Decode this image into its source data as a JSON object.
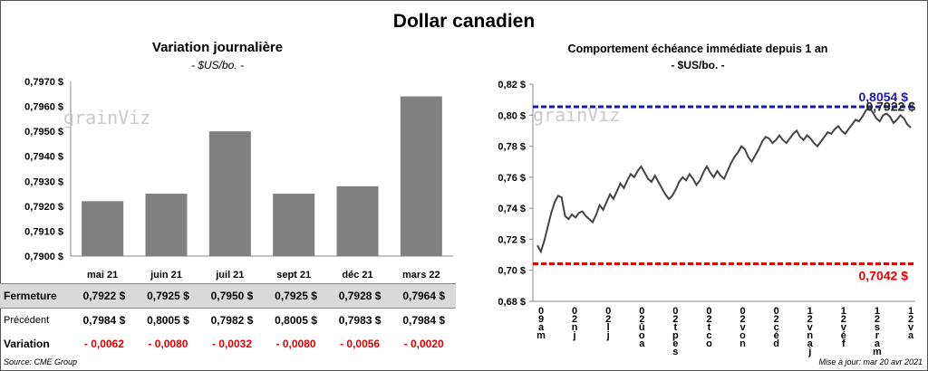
{
  "title": "Dollar canadien",
  "source": "Source: CME Group",
  "updated": "Mise à jour: mar 20 avr 2021",
  "watermark": "grainViz",
  "colors": {
    "bar": "#808080",
    "line": "#444444",
    "high": "#1a1aaa",
    "low": "#e00000"
  },
  "summary": {
    "rows": [
      {
        "label": "Fermeture",
        "values": [
          "0,7922  $",
          "0,7925  $",
          "0,7950  $",
          "0,7925  $",
          "0,7928  $",
          "0,7964  $"
        ]
      },
      {
        "label": "Précédent",
        "values": [
          "0,7984  $",
          "0,8005  $",
          "0,7982  $",
          "0,8005  $",
          "0,7983  $",
          "0,7984  $"
        ]
      },
      {
        "label": "Variation",
        "values": [
          "- 0,0062",
          "- 0,0080",
          "- 0,0032",
          "- 0,0080",
          "- 0,0056",
          "- 0,0020"
        ]
      }
    ]
  },
  "chart_data": [
    {
      "type": "bar",
      "title": "Variation  journalière",
      "subtitle": "- $US/bo. -",
      "categories": [
        "mai 21",
        "juin 21",
        "juil 21",
        "sept 21",
        "déc 21",
        "mars 22"
      ],
      "values": [
        0.7922,
        0.7925,
        0.795,
        0.7925,
        0.7928,
        0.7964
      ],
      "ylim": [
        0.79,
        0.797
      ],
      "yticks": [
        "0,7900 $",
        "0,7910 $",
        "0,7920 $",
        "0,7930 $",
        "0,7940 $",
        "0,7950 $",
        "0,7960 $",
        "0,7970 $"
      ],
      "grid": false
    },
    {
      "type": "line",
      "title": "Comportement échéance immédiate depuis 1 an",
      "subtitle": "- $US/bo. -",
      "ylim": [
        0.68,
        0.82
      ],
      "yticks": [
        "0,68 $",
        "0,70 $",
        "0,72 $",
        "0,74 $",
        "0,76 $",
        "0,78 $",
        "0,80 $",
        "0,82 $"
      ],
      "xticks": [
        "20 avr",
        "20 mai",
        "20 juin",
        "20 juil",
        "20 août",
        "20 sept",
        "20 oct",
        "20 nov",
        "20 déc",
        "20 janv",
        "20 févr",
        "20 mars",
        "20 avr"
      ],
      "xtick_labels": [
        "0\n9\na\nm",
        "0\n2\nn\nj",
        "0\n2\nl\nj",
        "0\n2\nû\no\na",
        "0\n2\nt\np\ne\ns",
        "0\n2\nt\nc\no",
        "0\n2\nv\no\nn",
        "0\n2\nc\né\nd",
        "1\n2\nv\nn\na\nj",
        "1\n2\nv\né\nf",
        "1\n2\ns\nr\na\nm",
        "1\n2\nv\na"
      ],
      "high": {
        "value": 0.8054,
        "label": "0,8054 $"
      },
      "low": {
        "value": 0.7042,
        "label": "0,7042 $"
      },
      "last": {
        "value": 0.7922,
        "label": "0,7922 $"
      },
      "series": [
        {
          "values": [
            0.716,
            0.712,
            0.719,
            0.728,
            0.737,
            0.744,
            0.748,
            0.747,
            0.735,
            0.733,
            0.736,
            0.734,
            0.737,
            0.738,
            0.735,
            0.733,
            0.731,
            0.736,
            0.742,
            0.739,
            0.744,
            0.749,
            0.746,
            0.751,
            0.756,
            0.753,
            0.758,
            0.762,
            0.76,
            0.764,
            0.767,
            0.763,
            0.759,
            0.757,
            0.761,
            0.757,
            0.753,
            0.749,
            0.746,
            0.748,
            0.752,
            0.757,
            0.76,
            0.758,
            0.762,
            0.759,
            0.755,
            0.758,
            0.763,
            0.767,
            0.763,
            0.76,
            0.764,
            0.761,
            0.759,
            0.764,
            0.769,
            0.773,
            0.776,
            0.78,
            0.778,
            0.773,
            0.77,
            0.774,
            0.778,
            0.783,
            0.786,
            0.785,
            0.782,
            0.784,
            0.787,
            0.784,
            0.782,
            0.785,
            0.788,
            0.79,
            0.786,
            0.784,
            0.787,
            0.785,
            0.782,
            0.78,
            0.783,
            0.786,
            0.789,
            0.788,
            0.791,
            0.793,
            0.79,
            0.788,
            0.791,
            0.794,
            0.797,
            0.796,
            0.799,
            0.803,
            0.805,
            0.802,
            0.798,
            0.796,
            0.8,
            0.801,
            0.799,
            0.795,
            0.797,
            0.8,
            0.798,
            0.794,
            0.792
          ]
        }
      ]
    }
  ]
}
